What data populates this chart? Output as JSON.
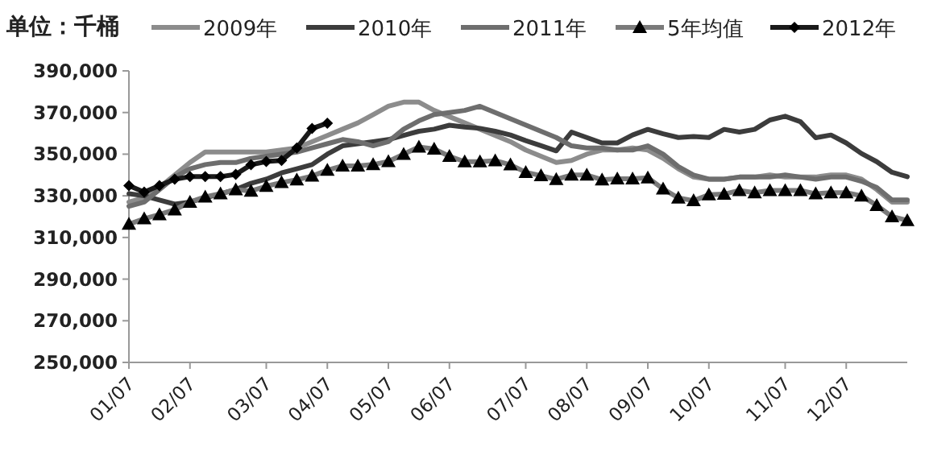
{
  "chart_data": {
    "type": "line",
    "ylabel": "单位：千桶",
    "legend": "top",
    "grid": false,
    "categories": [
      "01/07",
      null,
      null,
      null,
      "02/07",
      null,
      null,
      null,
      null,
      "03/07",
      null,
      null,
      null,
      "04/07",
      null,
      null,
      null,
      "05/07",
      null,
      null,
      null,
      "06/07",
      null,
      null,
      null,
      null,
      "07/07",
      null,
      null,
      null,
      "08/07",
      null,
      null,
      null,
      "09/07",
      null,
      null,
      null,
      "10/07",
      null,
      null,
      null,
      null,
      "11/07",
      null,
      null,
      null,
      "12/07",
      null,
      null,
      null,
      null
    ],
    "ylim": [
      250000,
      390000
    ],
    "yticks": [
      {
        "value": 250000,
        "label": "250,000"
      },
      {
        "value": 270000,
        "label": "270,000"
      },
      {
        "value": 290000,
        "label": "290,000"
      },
      {
        "value": 310000,
        "label": "310,000"
      },
      {
        "value": 330000,
        "label": "330,000"
      },
      {
        "value": 350000,
        "label": "350,000"
      },
      {
        "value": 370000,
        "label": "370,000"
      },
      {
        "value": 390000,
        "label": "390,000"
      }
    ],
    "series": [
      {
        "name": "2009年",
        "color": "#8c8c8c",
        "values": [
          327000,
          329000,
          334000,
          340000,
          346000,
          351000,
          351000,
          351000,
          351000,
          351000,
          352000,
          353000,
          356000,
          359000,
          362000,
          365000,
          369000,
          373000,
          375000,
          375000,
          371000,
          368000,
          365000,
          362000,
          359000,
          356000,
          352000,
          349000,
          346000,
          347000,
          350000,
          352000,
          352000,
          353000,
          352000,
          348000,
          343000,
          339000,
          338000,
          338000,
          339000,
          339000,
          340000,
          339000,
          339000,
          339000,
          340000,
          340000,
          338000,
          333000,
          327000,
          327000
        ]
      },
      {
        "name": "2010年",
        "color": "#3c3c3c",
        "values": [
          331000,
          330000,
          328000,
          326000,
          327000,
          329000,
          331000,
          333000,
          336000,
          338000,
          341000,
          343000,
          345000,
          350000,
          354000,
          355000,
          356000,
          357000,
          359000,
          361000,
          362000,
          363900,
          363000,
          362400,
          361000,
          359200,
          356500,
          354100,
          351600,
          360600,
          358000,
          355400,
          355400,
          359200,
          361900,
          359800,
          358000,
          358500,
          358000,
          361900,
          360600,
          361900,
          366400,
          368200,
          365600,
          357900,
          359200,
          355400,
          350300,
          346400,
          341300,
          339200
        ]
      },
      {
        "name": "2011年",
        "color": "#6e6e6e",
        "values": [
          325000,
          327000,
          333000,
          339000,
          343000,
          345000,
          346000,
          346000,
          348000,
          349000,
          350000,
          351000,
          353000,
          355000,
          357000,
          356000,
          354000,
          356000,
          362000,
          366000,
          369000,
          370000,
          371000,
          373000,
          370000,
          367000,
          364000,
          361000,
          358000,
          354000,
          353000,
          353000,
          352000,
          352000,
          354000,
          350000,
          344000,
          340000,
          338000,
          338000,
          339000,
          339000,
          339000,
          340000,
          339000,
          338000,
          339000,
          339000,
          337000,
          334000,
          328000,
          328000
        ]
      },
      {
        "name": "5年均值",
        "color": "#7a7a7a",
        "marker": "triangle",
        "values": [
          316400,
          319000,
          321000,
          323300,
          327000,
          329500,
          331000,
          333000,
          332300,
          334600,
          336400,
          337700,
          339500,
          342300,
          344400,
          344400,
          345000,
          346500,
          350000,
          353500,
          352500,
          349000,
          346400,
          346400,
          346900,
          344900,
          341300,
          339700,
          337900,
          340000,
          340000,
          337700,
          338200,
          338200,
          338700,
          333300,
          329000,
          327700,
          330500,
          330800,
          332600,
          331500,
          332600,
          332600,
          332600,
          331000,
          331500,
          331500,
          330000,
          325400,
          320000,
          318200
        ]
      },
      {
        "name": "2012年",
        "color": "#1a1a1a",
        "marker": "diamond",
        "values": [
          334900,
          331800,
          334900,
          338000,
          339200,
          339200,
          339200,
          340300,
          344900,
          346500,
          347000,
          353000,
          362300,
          364900,
          null,
          null,
          null,
          null,
          null,
          null,
          null,
          null,
          null,
          null,
          null,
          null,
          null,
          null,
          null,
          null,
          null,
          null,
          null,
          null,
          null,
          null,
          null,
          null,
          null,
          null,
          null,
          null,
          null,
          null,
          null,
          null,
          null,
          null,
          null,
          null,
          null,
          null
        ]
      }
    ]
  }
}
